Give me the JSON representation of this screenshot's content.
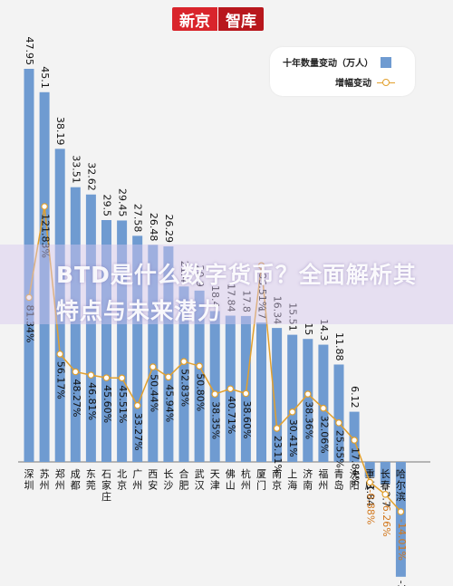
{
  "header": {
    "logo_part1": "新京",
    "logo_part2": "智库"
  },
  "legend": {
    "bar_label": "十年数量变动（万人）",
    "line_label": "增幅变动"
  },
  "banner": {
    "text": "BTD是什么数字货币？全面解析其特点与未来潜力"
  },
  "colors": {
    "bar": "#6f9bd1",
    "line": "#e2a02d",
    "logo_red": "#d9242b"
  },
  "chart_data": {
    "type": "bar",
    "categories": [
      "深圳",
      "苏州",
      "郑州",
      "成都",
      "东莞",
      "石家庄",
      "北京",
      "广州",
      "西安",
      "长沙",
      "合肥",
      "武汉",
      "天津",
      "佛山",
      "杭州",
      "厦门",
      "南京",
      "上海",
      "济南",
      "福州",
      "青岛",
      "沈阳",
      "重庆",
      "长春",
      "哈尔滨"
    ],
    "series": [
      {
        "name": "十年数量变动（万人）",
        "type": "bar",
        "values": [
          47.95,
          45.1,
          38.19,
          33.51,
          32.62,
          29.5,
          29.45,
          27.58,
          26.48,
          26.29,
          21.4,
          20.9,
          18.4,
          17.84,
          17.8,
          17,
          16.34,
          15.51,
          15,
          14.3,
          11.88,
          6.12,
          -1.84,
          -2.7,
          -14.01
        ],
        "labels": [
          "47.95",
          "45.1",
          "38.19",
          "33.51",
          "32.62",
          "29.5",
          "29.45",
          "27.58",
          "26.48",
          "26.29",
          "21.4",
          "20.9",
          "18.4",
          "17.84",
          "17.8",
          "17",
          "16.34",
          "15.51",
          "15",
          "14.3",
          "11.88",
          "6.12",
          "-1.84",
          "-2.7",
          "-14.01"
        ]
      },
      {
        "name": "增幅变动",
        "type": "line",
        "values": [
          81.34,
          121.83,
          56.17,
          48.27,
          46.81,
          45.6,
          45.51,
          33.27,
          50.44,
          45.94,
          52.83,
          50.8,
          38.35,
          40.71,
          38.6,
          95.51,
          23.11,
          30.41,
          38.36,
          32.06,
          25.55,
          17.84,
          -0.88,
          -6.26,
          -14.01
        ],
        "labels": [
          "81.34%",
          "121.83%",
          "56.17%",
          "48.27%",
          "46.81%",
          "45.60%",
          "45.51%",
          "33.27%",
          "50.44%",
          "45.94%",
          "52.83%",
          "50.80%",
          "38.35%",
          "40.71%",
          "38.60%",
          "95.51%",
          "23.11%",
          "30.41%",
          "38.36%",
          "32.06%",
          "25.55%",
          "17.84%",
          "-0.88%",
          "-6.26%",
          "-14.01%"
        ]
      }
    ],
    "bar_ylim": [
      -14.01,
      47.95
    ],
    "line_ylim": [
      -14.01,
      121.83
    ]
  }
}
